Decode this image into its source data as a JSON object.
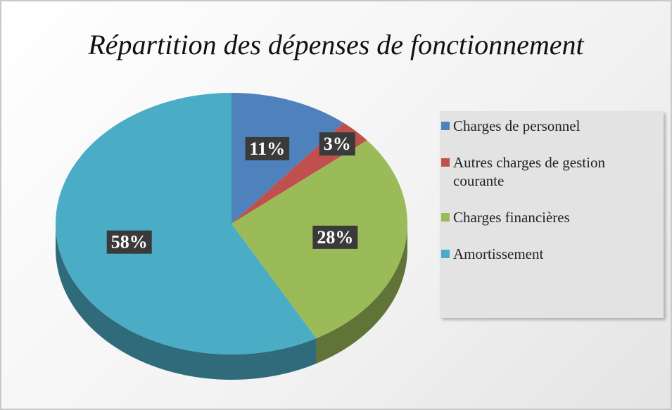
{
  "chart_data": {
    "type": "pie",
    "title": "Répartition des dépenses de fonctionnement",
    "categories": [
      "Charges de personnel",
      "Autres charges de gestion courante",
      "Charges financières",
      "Amortissement"
    ],
    "values": [
      11,
      3,
      28,
      58
    ],
    "value_labels": [
      "11%",
      "3%",
      "28%",
      "58%"
    ],
    "colors": [
      "#4f81bd",
      "#c0504d",
      "#9bbb59",
      "#4bacc6"
    ],
    "legend": "right"
  }
}
